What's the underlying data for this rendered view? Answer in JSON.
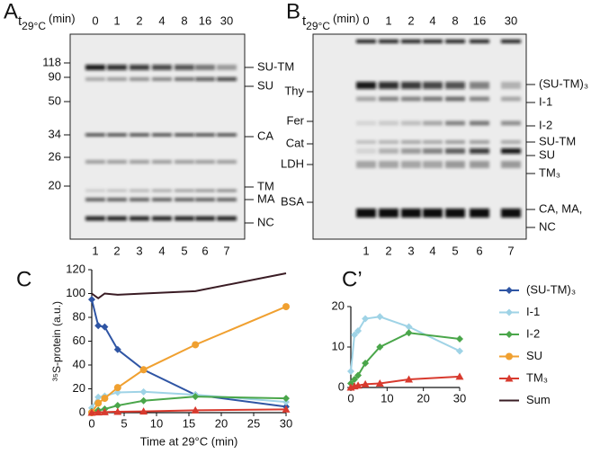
{
  "panels": {
    "a": "A",
    "b": "B",
    "c": "C",
    "c2": "C’"
  },
  "gel_a": {
    "time_label": {
      "t": "t",
      "sub": "29°C",
      "unit": "(min)"
    },
    "times": [
      "0",
      "1",
      "2",
      "4",
      "8",
      "16",
      "30"
    ],
    "lanes": [
      "1",
      "2",
      "3",
      "4",
      "5",
      "6",
      "7"
    ],
    "markers": [
      "118",
      "90",
      "50",
      "34",
      "26",
      "20"
    ],
    "bands": [
      "SU-TM",
      "SU",
      "CA",
      "TM",
      "MA",
      "NC"
    ]
  },
  "gel_b": {
    "time_label": {
      "t": "t",
      "sub": "29°C",
      "unit": "(min)"
    },
    "times": [
      "0",
      "1",
      "2",
      "4",
      "8",
      "16",
      "30"
    ],
    "lanes": [
      "1",
      "2",
      "3",
      "4",
      "5",
      "6",
      "7"
    ],
    "markers": [
      "Thy",
      "Fer",
      "Cat",
      "LDH",
      "BSA"
    ],
    "bands": [
      "(SU-TM)₃",
      "I-1",
      "I-2",
      "SU-TM",
      "SU",
      "TM₃",
      "CA, MA,",
      "NC"
    ]
  },
  "chart_data": [
    {
      "type": "line",
      "xlabel": "Time at 29°C (min)",
      "ylabel": "³⁵S-protein (a.u.)",
      "x": [
        0,
        1,
        2,
        4,
        8,
        16,
        30
      ],
      "xlim": [
        0,
        30
      ],
      "xticks": [
        0,
        5,
        10,
        15,
        20,
        25,
        30
      ],
      "ylim": [
        0,
        120
      ],
      "yticks": [
        0,
        20,
        40,
        60,
        80,
        100,
        120
      ],
      "legend": "right",
      "series": [
        {
          "name": "(SU-TM)₃",
          "color": "#2f55a4",
          "marker": "diamond",
          "values": [
            95,
            73,
            72,
            53,
            36,
            15,
            5
          ]
        },
        {
          "name": "I-1",
          "color": "#9fd3e6",
          "marker": "diamond",
          "values": [
            4,
            13,
            14,
            17,
            17.5,
            15,
            9
          ]
        },
        {
          "name": "I-2",
          "color": "#4aa64a",
          "marker": "diamond",
          "values": [
            1,
            2,
            3,
            6,
            10,
            13.5,
            12
          ]
        },
        {
          "name": "SU",
          "color": "#f0a030",
          "marker": "circle",
          "values": [
            0,
            8,
            12,
            21,
            36,
            57,
            89
          ]
        },
        {
          "name": "TM₃",
          "color": "#d83a2e",
          "marker": "triangle",
          "values": [
            0,
            0.3,
            0.5,
            0.8,
            1,
            2,
            2.7
          ]
        },
        {
          "name": "Sum",
          "color": "#3a1c24",
          "marker": "none",
          "values": [
            100,
            96,
            100,
            99,
            100,
            102,
            117
          ]
        }
      ]
    },
    {
      "type": "line",
      "x": [
        0,
        1,
        2,
        4,
        8,
        16,
        30
      ],
      "xlim": [
        0,
        30
      ],
      "xticks": [
        0,
        10,
        20,
        30
      ],
      "ylim": [
        0,
        20
      ],
      "yticks": [
        0,
        10,
        20
      ],
      "series": [
        {
          "color": "#9fd3e6",
          "marker": "diamond",
          "values": [
            4,
            13,
            14,
            17,
            17.5,
            15,
            9
          ]
        },
        {
          "color": "#4aa64a",
          "marker": "diamond",
          "values": [
            1,
            2,
            3,
            6,
            10,
            13.5,
            12
          ]
        },
        {
          "color": "#d83a2e",
          "marker": "triangle",
          "values": [
            0,
            0.3,
            0.5,
            0.8,
            1,
            2,
            2.7
          ]
        }
      ]
    }
  ]
}
